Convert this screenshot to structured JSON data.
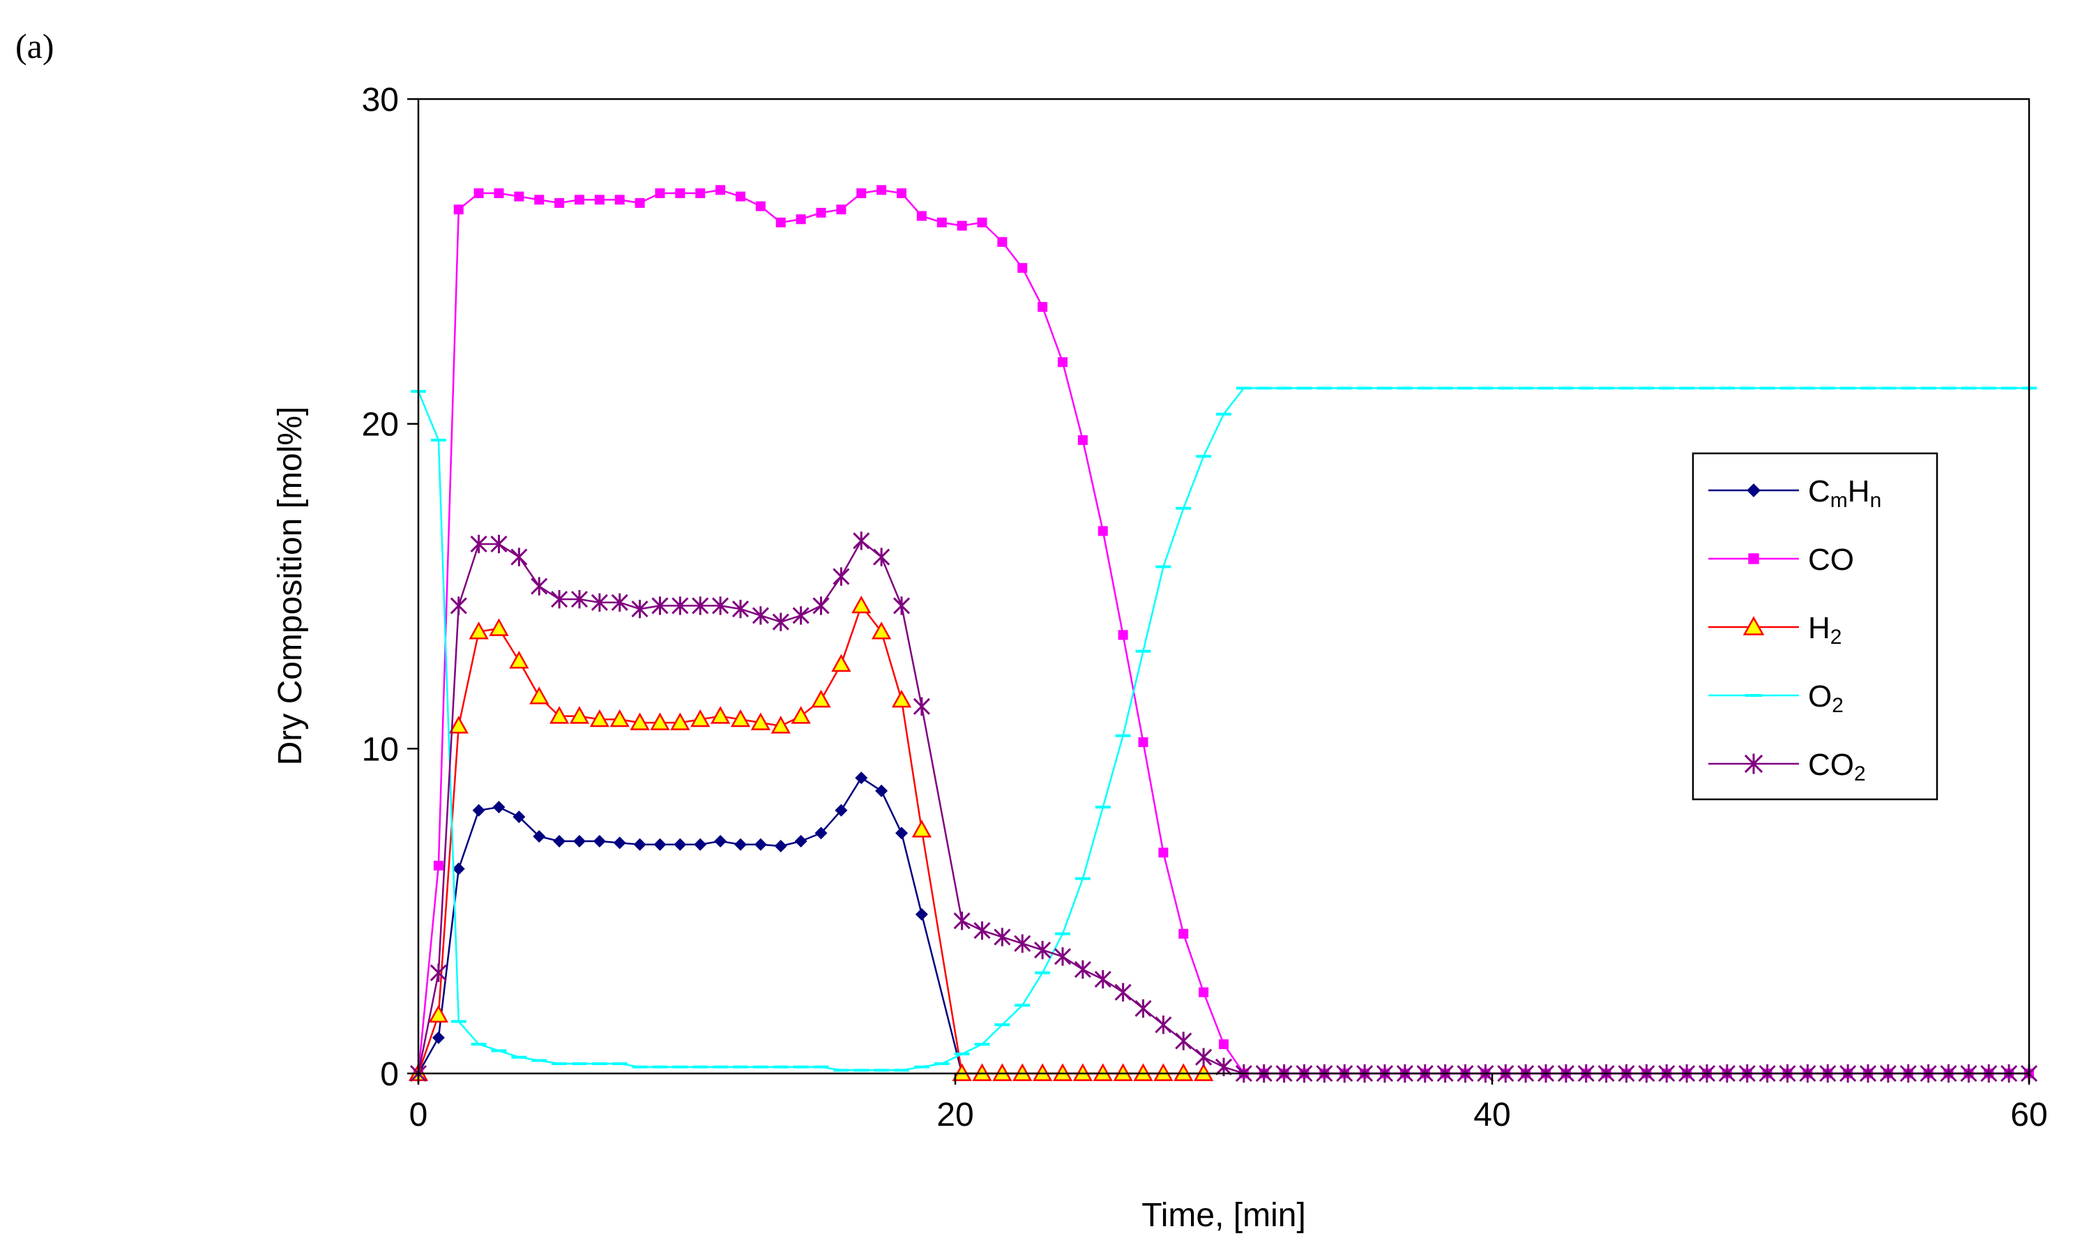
{
  "panel_label": "(a)",
  "chart_data": {
    "type": "line",
    "title": "",
    "xlabel": "Time, [min]",
    "ylabel": "Dry Composition [mol%]",
    "xlim": [
      0,
      60
    ],
    "ylim": [
      0,
      30
    ],
    "xticks": [
      0,
      20,
      40,
      60
    ],
    "yticks": [
      0,
      10,
      20,
      30
    ],
    "grid": false,
    "legend_position": "right",
    "series": [
      {
        "name": "CmHn",
        "label_main": "C",
        "label_sub1": "m",
        "label_mid": "H",
        "label_sub2": "n",
        "color": "#000080",
        "marker": "diamond",
        "x": [
          0,
          0.75,
          1.5,
          2.25,
          3,
          3.75,
          4.5,
          5.25,
          6,
          6.75,
          7.5,
          8.25,
          9,
          9.75,
          10.5,
          11.25,
          12,
          12.75,
          13.5,
          14.25,
          15,
          15.75,
          16.5,
          17.25,
          18,
          18.75,
          20.25
        ],
        "y": [
          0,
          1.1,
          6.3,
          8.1,
          8.2,
          7.9,
          7.3,
          7.15,
          7.15,
          7.15,
          7.1,
          7.05,
          7.05,
          7.05,
          7.05,
          7.15,
          7.05,
          7.05,
          7.0,
          7.15,
          7.4,
          8.1,
          9.1,
          8.7,
          7.4,
          4.9,
          0
        ]
      },
      {
        "name": "CO",
        "label_main": "CO",
        "color": "#ff00ff",
        "marker": "square",
        "x": [
          0,
          0.75,
          1.5,
          2.25,
          3,
          3.75,
          4.5,
          5.25,
          6,
          6.75,
          7.5,
          8.25,
          9,
          9.75,
          10.5,
          11.25,
          12,
          12.75,
          13.5,
          14.25,
          15,
          15.75,
          16.5,
          17.25,
          18,
          18.75,
          19.5,
          20.25,
          21,
          21.75,
          22.5,
          23.25,
          24,
          24.75,
          25.5,
          26.25,
          27,
          27.75,
          28.5,
          29.25,
          30,
          30.75,
          31.5,
          32.25,
          33,
          33.75,
          34.5,
          35.25,
          36,
          36.75,
          37.5,
          38.25,
          39,
          39.75,
          40.5,
          41.25,
          42,
          42.75,
          43.5,
          44.25,
          45,
          45.75,
          46.5,
          47.25,
          48,
          48.75,
          49.5,
          50.25,
          51,
          51.75,
          52.5,
          53.25,
          54,
          54.75,
          55.5,
          56.25,
          57,
          57.75,
          58.5,
          59.25,
          60
        ],
        "y": [
          0,
          6.4,
          26.6,
          27.1,
          27.1,
          27.0,
          26.9,
          26.8,
          26.9,
          26.9,
          26.9,
          26.8,
          27.1,
          27.1,
          27.1,
          27.2,
          27.0,
          26.7,
          26.2,
          26.3,
          26.5,
          26.6,
          27.1,
          27.2,
          27.1,
          26.4,
          26.2,
          26.1,
          26.2,
          25.6,
          24.8,
          23.6,
          21.9,
          19.5,
          16.7,
          13.5,
          10.2,
          6.8,
          4.3,
          2.5,
          0.9,
          0,
          0,
          0,
          0,
          0,
          0,
          0,
          0,
          0,
          0,
          0,
          0,
          0,
          0,
          0,
          0,
          0,
          0,
          0,
          0,
          0,
          0,
          0,
          0,
          0,
          0,
          0,
          0,
          0,
          0,
          0,
          0,
          0,
          0,
          0,
          0,
          0,
          0,
          0,
          0
        ]
      },
      {
        "name": "H2",
        "label_main": "H",
        "label_sub1": "2",
        "color": "#ff0000",
        "marker": "triangle",
        "x": [
          0,
          0.75,
          1.5,
          2.25,
          3,
          3.75,
          4.5,
          5.25,
          6,
          6.75,
          7.5,
          8.25,
          9,
          9.75,
          10.5,
          11.25,
          12,
          12.75,
          13.5,
          14.25,
          15,
          15.75,
          16.5,
          17.25,
          18,
          18.75,
          20.25,
          21,
          21.75,
          22.5,
          23.25,
          24,
          24.75,
          25.5,
          26.25,
          27,
          27.75,
          28.5,
          29.25
        ],
        "y": [
          0,
          1.8,
          10.7,
          13.6,
          13.7,
          12.7,
          11.6,
          11.0,
          11.0,
          10.9,
          10.9,
          10.8,
          10.8,
          10.8,
          10.9,
          11.0,
          10.9,
          10.8,
          10.7,
          11.0,
          11.5,
          12.6,
          14.4,
          13.6,
          11.5,
          7.5,
          0,
          0,
          0,
          0,
          0,
          0,
          0,
          0,
          0,
          0,
          0,
          0,
          0
        ]
      },
      {
        "name": "O2",
        "label_main": "O",
        "label_sub1": "2",
        "color": "#00ffff",
        "marker": "dash",
        "x": [
          0,
          0.75,
          1.5,
          2.25,
          3,
          3.75,
          4.5,
          5.25,
          6,
          6.75,
          7.5,
          8.25,
          9,
          9.75,
          10.5,
          11.25,
          12,
          12.75,
          13.5,
          14.25,
          15,
          15.75,
          16.5,
          17.25,
          18,
          18.75,
          19.5,
          20.25,
          21,
          21.75,
          22.5,
          23.25,
          24,
          24.75,
          25.5,
          26.25,
          27,
          27.75,
          28.5,
          29.25,
          30,
          30.75,
          31.5,
          32.25,
          33,
          33.75,
          34.5,
          35.25,
          36,
          36.75,
          37.5,
          38.25,
          39,
          39.75,
          40.5,
          41.25,
          42,
          42.75,
          43.5,
          44.25,
          45,
          45.75,
          46.5,
          47.25,
          48,
          48.75,
          49.5,
          50.25,
          51,
          51.75,
          52.5,
          53.25,
          54,
          54.75,
          55.5,
          56.25,
          57,
          57.75,
          58.5,
          59.25,
          60
        ],
        "y": [
          21.0,
          19.5,
          1.6,
          0.9,
          0.7,
          0.5,
          0.4,
          0.3,
          0.3,
          0.3,
          0.3,
          0.2,
          0.2,
          0.2,
          0.2,
          0.2,
          0.2,
          0.2,
          0.2,
          0.2,
          0.2,
          0.1,
          0.1,
          0.1,
          0.1,
          0.2,
          0.3,
          0.6,
          0.9,
          1.5,
          2.1,
          3.1,
          4.3,
          6.0,
          8.2,
          10.4,
          13.0,
          15.6,
          17.4,
          19.0,
          20.3,
          21.1,
          21.1,
          21.1,
          21.1,
          21.1,
          21.1,
          21.1,
          21.1,
          21.1,
          21.1,
          21.1,
          21.1,
          21.1,
          21.1,
          21.1,
          21.1,
          21.1,
          21.1,
          21.1,
          21.1,
          21.1,
          21.1,
          21.1,
          21.1,
          21.1,
          21.1,
          21.1,
          21.1,
          21.1,
          21.1,
          21.1,
          21.1,
          21.1,
          21.1,
          21.1,
          21.1,
          21.1,
          21.1,
          21.1,
          21.1
        ]
      },
      {
        "name": "CO2",
        "label_main": "CO",
        "label_sub1": "2",
        "color": "#800080",
        "marker": "star",
        "x": [
          0,
          0.75,
          1.5,
          2.25,
          3,
          3.75,
          4.5,
          5.25,
          6,
          6.75,
          7.5,
          8.25,
          9,
          9.75,
          10.5,
          11.25,
          12,
          12.75,
          13.5,
          14.25,
          15,
          15.75,
          16.5,
          17.25,
          18,
          18.75,
          20.25,
          21,
          21.75,
          22.5,
          23.25,
          24,
          24.75,
          25.5,
          26.25,
          27,
          27.75,
          28.5,
          29.25,
          30,
          30.75,
          31.5,
          32.25,
          33,
          33.75,
          34.5,
          35.25,
          36,
          36.75,
          37.5,
          38.25,
          39,
          39.75,
          40.5,
          41.25,
          42,
          42.75,
          43.5,
          44.25,
          45,
          45.75,
          46.5,
          47.25,
          48,
          48.75,
          49.5,
          50.25,
          51,
          51.75,
          52.5,
          53.25,
          54,
          54.75,
          55.5,
          56.25,
          57,
          57.75,
          58.5,
          59.25,
          60
        ],
        "y": [
          0,
          3.1,
          14.4,
          16.3,
          16.3,
          15.9,
          15.0,
          14.6,
          14.6,
          14.5,
          14.5,
          14.3,
          14.4,
          14.4,
          14.4,
          14.4,
          14.3,
          14.1,
          13.9,
          14.1,
          14.4,
          15.3,
          16.4,
          15.9,
          14.4,
          11.3,
          4.7,
          4.4,
          4.2,
          4.0,
          3.8,
          3.6,
          3.2,
          2.9,
          2.5,
          2.0,
          1.5,
          1.0,
          0.5,
          0.2,
          0,
          0,
          0,
          0,
          0,
          0,
          0,
          0,
          0,
          0,
          0,
          0,
          0,
          0,
          0,
          0,
          0,
          0,
          0,
          0,
          0,
          0,
          0,
          0,
          0,
          0,
          0,
          0,
          0,
          0,
          0,
          0,
          0,
          0,
          0,
          0,
          0,
          0,
          0,
          0
        ]
      }
    ]
  }
}
